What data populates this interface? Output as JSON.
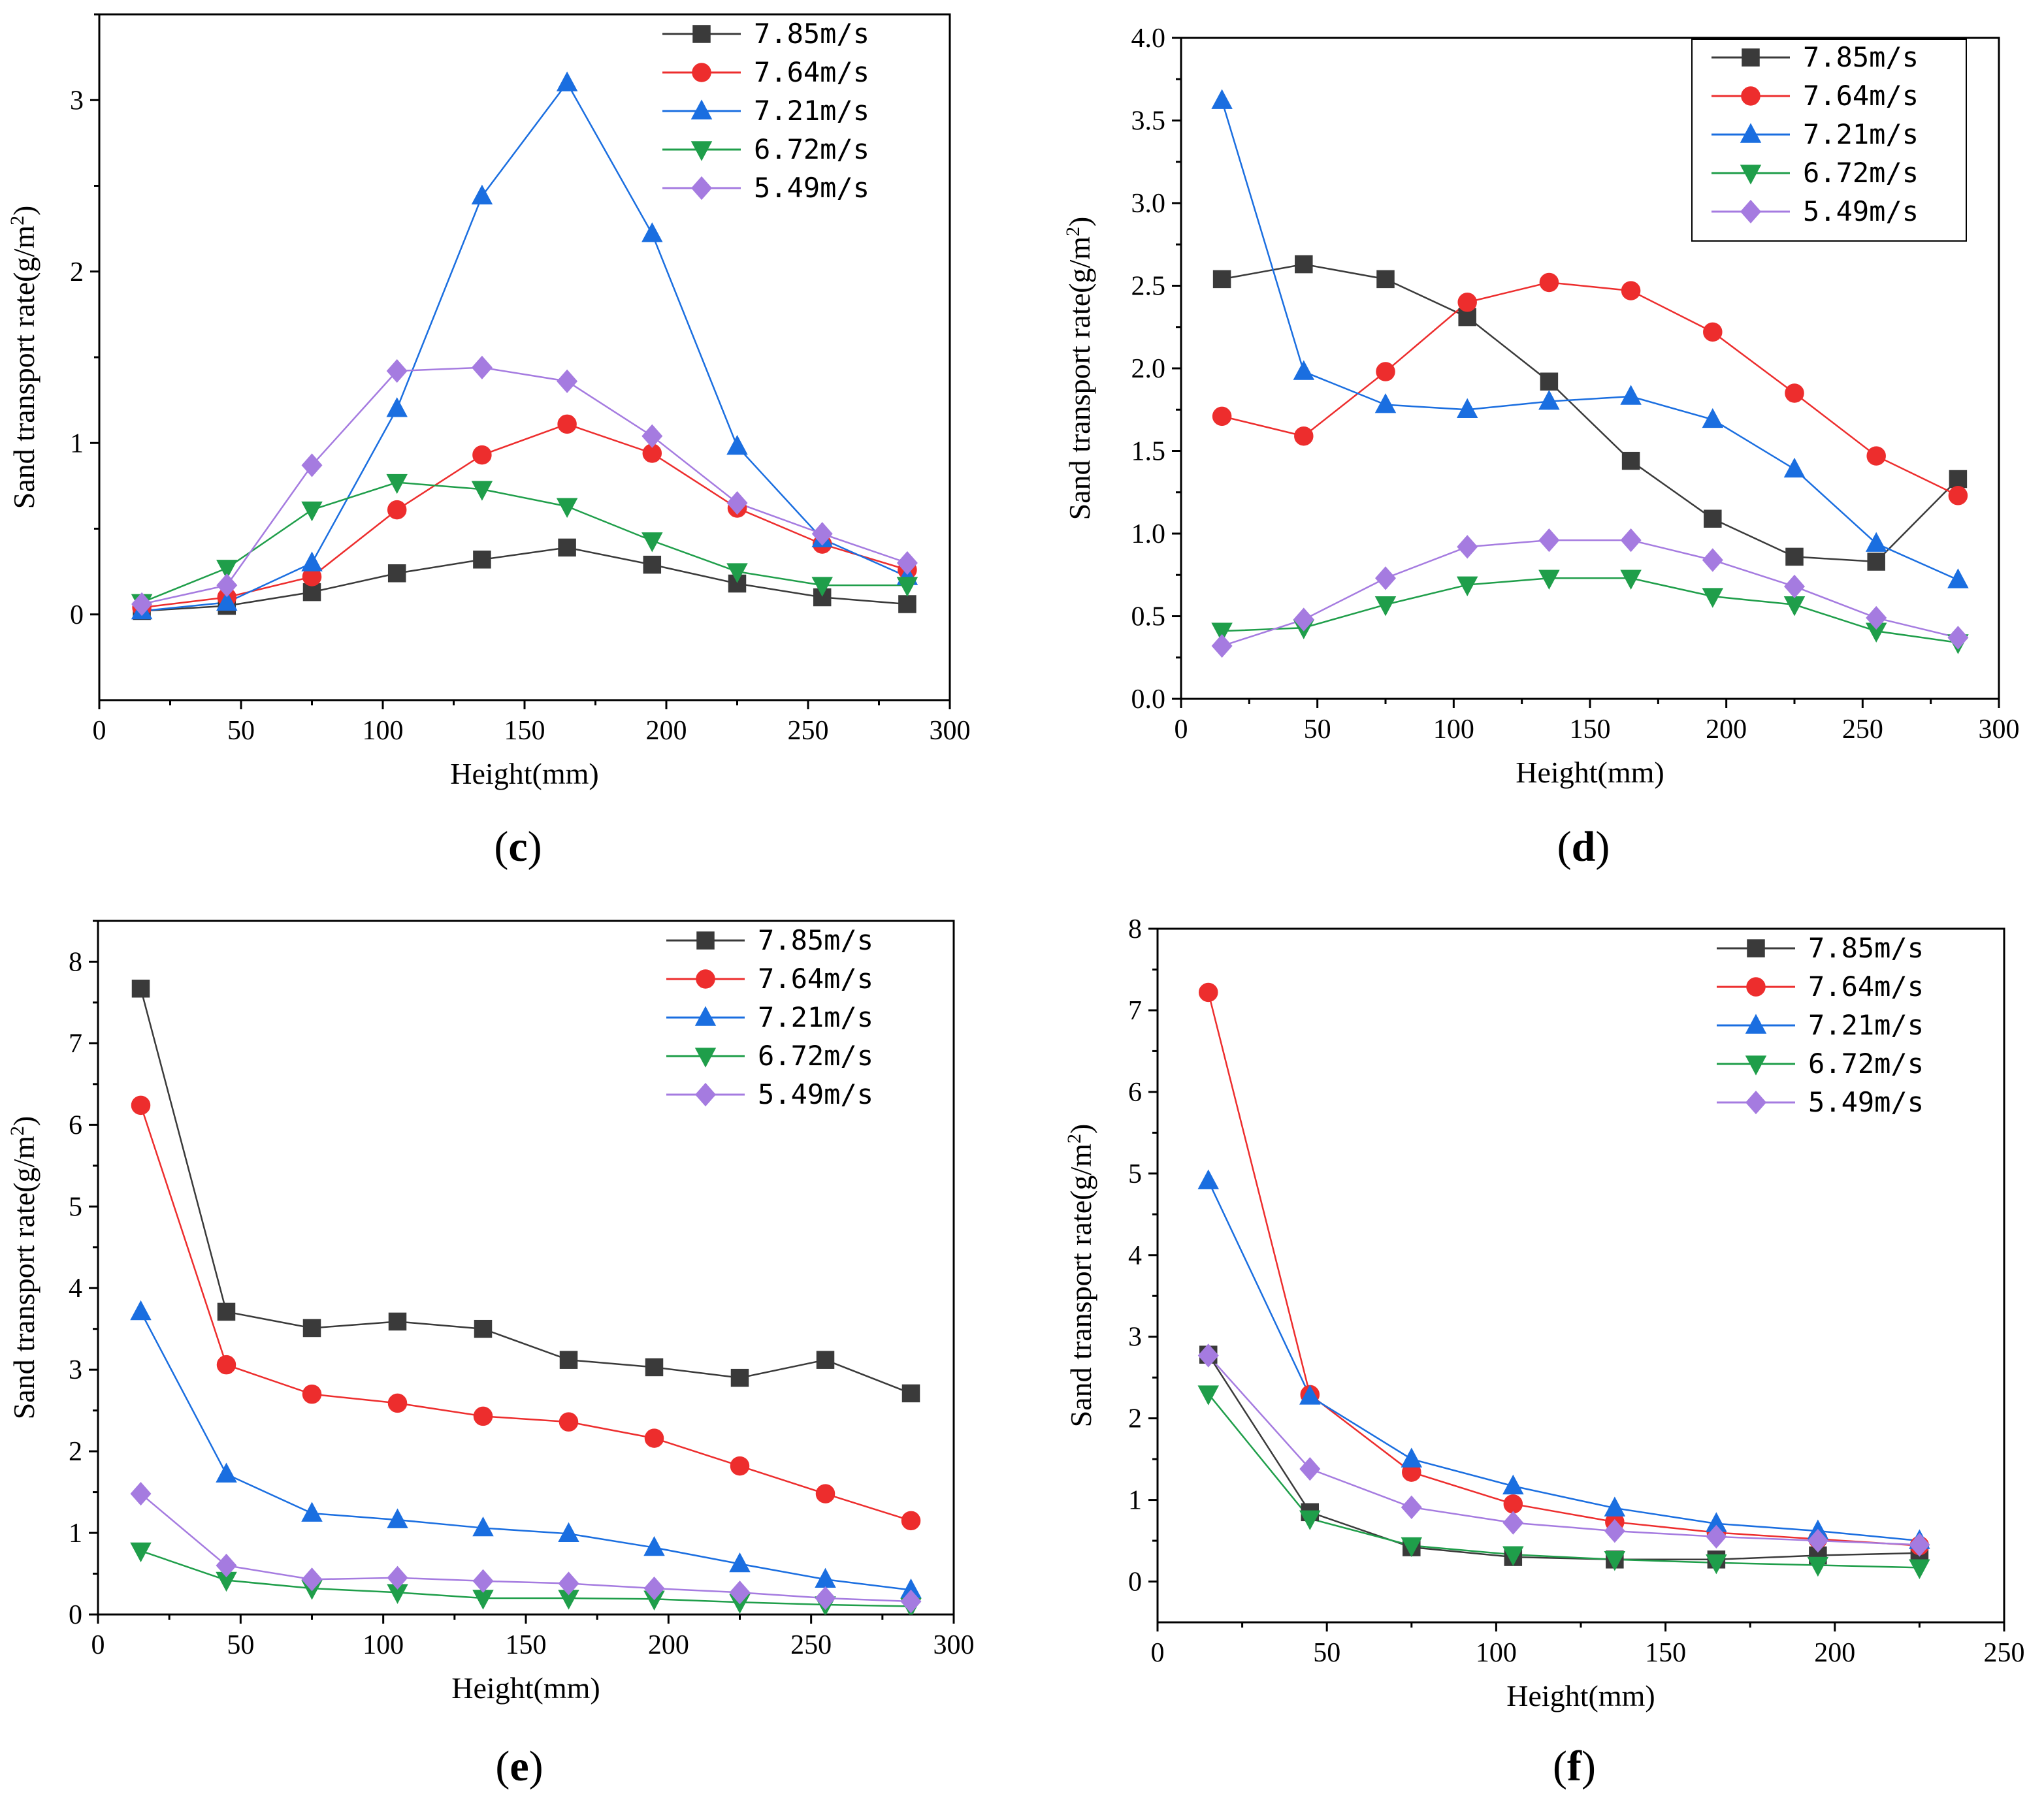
{
  "chart_data": [
    {
      "type": "line",
      "panel_label": "c",
      "xlabel": "Height(mm)",
      "ylabel": "Sand transport rate(g/m",
      "ylabel_sup": "2",
      "ylabel_close": ")",
      "xlim": [
        0,
        300
      ],
      "ylim": [
        -0.5,
        3.5
      ],
      "xticks": [
        0,
        50,
        100,
        150,
        200,
        250,
        300
      ],
      "xtick_labels": [
        "0",
        "50",
        "100",
        "150",
        "200",
        "250",
        "300"
      ],
      "yticks": [
        0,
        1,
        2,
        3
      ],
      "ytick_labels": [
        "0",
        "1",
        "2",
        "3"
      ],
      "legend": "top-right",
      "x": [
        15,
        45,
        75,
        105,
        135,
        165,
        195,
        225,
        255,
        285
      ],
      "series": [
        {
          "name": "7.85m/s",
          "color": "#3a3a3a",
          "marker": "square",
          "values": [
            0.02,
            0.05,
            0.13,
            0.24,
            0.32,
            0.39,
            0.29,
            0.18,
            0.1,
            0.06
          ]
        },
        {
          "name": "7.64m/s",
          "color": "#ed2d2d",
          "marker": "circle",
          "values": [
            0.04,
            0.1,
            0.22,
            0.61,
            0.93,
            1.11,
            0.94,
            0.62,
            0.41,
            0.26
          ]
        },
        {
          "name": "7.21m/s",
          "color": "#1a6ee0",
          "marker": "triangle-up",
          "values": [
            0.02,
            0.07,
            0.3,
            1.2,
            2.44,
            3.1,
            2.22,
            0.98,
            0.44,
            0.22
          ]
        },
        {
          "name": "6.72m/s",
          "color": "#1f9e4a",
          "marker": "triangle-down",
          "values": [
            0.07,
            0.27,
            0.61,
            0.77,
            0.73,
            0.63,
            0.43,
            0.25,
            0.17,
            0.17
          ]
        },
        {
          "name": "5.49m/s",
          "color": "#a57be0",
          "marker": "diamond",
          "values": [
            0.06,
            0.17,
            0.87,
            1.42,
            1.44,
            1.36,
            1.04,
            0.65,
            0.47,
            0.3
          ]
        }
      ]
    },
    {
      "type": "line",
      "panel_label": "d",
      "xlabel": "Height(mm)",
      "ylabel": "Sand transport rate(g/m",
      "ylabel_sup": "2",
      "ylabel_close": ")",
      "xlim": [
        0,
        300
      ],
      "ylim": [
        0,
        4
      ],
      "xticks": [
        0,
        50,
        100,
        150,
        200,
        250,
        300
      ],
      "xtick_labels": [
        "0",
        "50",
        "100",
        "150",
        "200",
        "250",
        "300"
      ],
      "yticks": [
        0,
        0.5,
        1,
        1.5,
        2,
        2.5,
        3,
        3.5,
        4
      ],
      "ytick_labels": [
        "0.0",
        "0.5",
        "1.0",
        "1.5",
        "2.0",
        "2.5",
        "3.0",
        "3.5",
        "4.0"
      ],
      "legend": "top-right",
      "x": [
        15,
        45,
        75,
        105,
        135,
        165,
        195,
        225,
        255,
        285
      ],
      "series": [
        {
          "name": "7.85m/s",
          "color": "#3a3a3a",
          "marker": "square",
          "values": [
            2.54,
            2.63,
            2.54,
            2.31,
            1.92,
            1.44,
            1.09,
            0.86,
            0.83,
            1.33
          ]
        },
        {
          "name": "7.64m/s",
          "color": "#ed2d2d",
          "marker": "circle",
          "values": [
            1.71,
            1.59,
            1.98,
            2.4,
            2.52,
            2.47,
            2.22,
            1.85,
            1.47,
            1.23
          ]
        },
        {
          "name": "7.21m/s",
          "color": "#1a6ee0",
          "marker": "triangle-up",
          "values": [
            3.62,
            1.98,
            1.78,
            1.75,
            1.8,
            1.83,
            1.69,
            1.39,
            0.94,
            0.72
          ]
        },
        {
          "name": "6.72m/s",
          "color": "#1f9e4a",
          "marker": "triangle-down",
          "values": [
            0.41,
            0.43,
            0.57,
            0.69,
            0.73,
            0.73,
            0.62,
            0.57,
            0.41,
            0.34
          ]
        },
        {
          "name": "5.49m/s",
          "color": "#a57be0",
          "marker": "diamond",
          "values": [
            0.32,
            0.48,
            0.73,
            0.92,
            0.96,
            0.96,
            0.84,
            0.68,
            0.49,
            0.37
          ]
        }
      ]
    },
    {
      "type": "line",
      "panel_label": "e",
      "xlabel": "Height(mm)",
      "ylabel": "Sand transport rate(g/m",
      "ylabel_sup": "2",
      "ylabel_close": ")",
      "xlim": [
        0,
        300
      ],
      "ylim": [
        0,
        8.5
      ],
      "xticks": [
        0,
        50,
        100,
        150,
        200,
        250,
        300
      ],
      "xtick_labels": [
        "0",
        "50",
        "100",
        "150",
        "200",
        "250",
        "300"
      ],
      "yticks": [
        0,
        1,
        2,
        3,
        4,
        5,
        6,
        7,
        8
      ],
      "ytick_labels": [
        "0",
        "1",
        "2",
        "3",
        "4",
        "5",
        "6",
        "7",
        "8"
      ],
      "legend": "top-right",
      "x": [
        15,
        45,
        75,
        105,
        135,
        165,
        195,
        225,
        255,
        285
      ],
      "series": [
        {
          "name": "7.85m/s",
          "color": "#3a3a3a",
          "marker": "square",
          "values": [
            7.67,
            3.71,
            3.51,
            3.59,
            3.5,
            3.12,
            3.03,
            2.9,
            3.12,
            2.71
          ]
        },
        {
          "name": "7.64m/s",
          "color": "#ed2d2d",
          "marker": "circle",
          "values": [
            6.24,
            3.06,
            2.7,
            2.59,
            2.43,
            2.36,
            2.16,
            1.82,
            1.48,
            1.15
          ]
        },
        {
          "name": "7.21m/s",
          "color": "#1a6ee0",
          "marker": "triangle-up",
          "values": [
            3.71,
            1.72,
            1.24,
            1.16,
            1.06,
            0.99,
            0.82,
            0.62,
            0.43,
            0.3
          ]
        },
        {
          "name": "6.72m/s",
          "color": "#1f9e4a",
          "marker": "triangle-down",
          "values": [
            0.78,
            0.42,
            0.32,
            0.27,
            0.2,
            0.2,
            0.19,
            0.15,
            0.12,
            0.1
          ]
        },
        {
          "name": "5.49m/s",
          "color": "#a57be0",
          "marker": "diamond",
          "values": [
            1.48,
            0.6,
            0.43,
            0.45,
            0.41,
            0.38,
            0.32,
            0.27,
            0.2,
            0.16
          ]
        }
      ]
    },
    {
      "type": "line",
      "panel_label": "f",
      "xlabel": "Height(mm)",
      "ylabel": "Sand transport rate(g/m",
      "ylabel_sup": "2",
      "ylabel_close": ")",
      "xlim": [
        0,
        250
      ],
      "ylim": [
        -0.5,
        8
      ],
      "xticks": [
        0,
        50,
        100,
        150,
        200,
        250
      ],
      "xtick_labels": [
        "0",
        "50",
        "100",
        "150",
        "200",
        "250"
      ],
      "yticks": [
        0,
        1,
        2,
        3,
        4,
        5,
        6,
        7,
        8
      ],
      "ytick_labels": [
        "0",
        "1",
        "2",
        "3",
        "4",
        "5",
        "6",
        "7",
        "8"
      ],
      "legend": "top-right",
      "x": [
        15,
        45,
        75,
        105,
        135,
        165,
        195,
        225
      ],
      "series": [
        {
          "name": "7.85m/s",
          "color": "#3a3a3a",
          "marker": "square",
          "values": [
            2.78,
            0.85,
            0.42,
            0.3,
            0.27,
            0.27,
            0.32,
            0.35
          ]
        },
        {
          "name": "7.64m/s",
          "color": "#ed2d2d",
          "marker": "circle",
          "values": [
            7.22,
            2.29,
            1.34,
            0.95,
            0.73,
            0.6,
            0.52,
            0.44
          ]
        },
        {
          "name": "7.21m/s",
          "color": "#1a6ee0",
          "marker": "triangle-up",
          "values": [
            4.91,
            2.27,
            1.5,
            1.17,
            0.9,
            0.71,
            0.62,
            0.5
          ]
        },
        {
          "name": "6.72m/s",
          "color": "#1f9e4a",
          "marker": "triangle-down",
          "values": [
            2.3,
            0.77,
            0.44,
            0.33,
            0.27,
            0.23,
            0.2,
            0.17
          ]
        },
        {
          "name": "5.49m/s",
          "color": "#a57be0",
          "marker": "diamond",
          "values": [
            2.77,
            1.38,
            0.91,
            0.72,
            0.62,
            0.55,
            0.5,
            0.45
          ]
        }
      ]
    }
  ]
}
